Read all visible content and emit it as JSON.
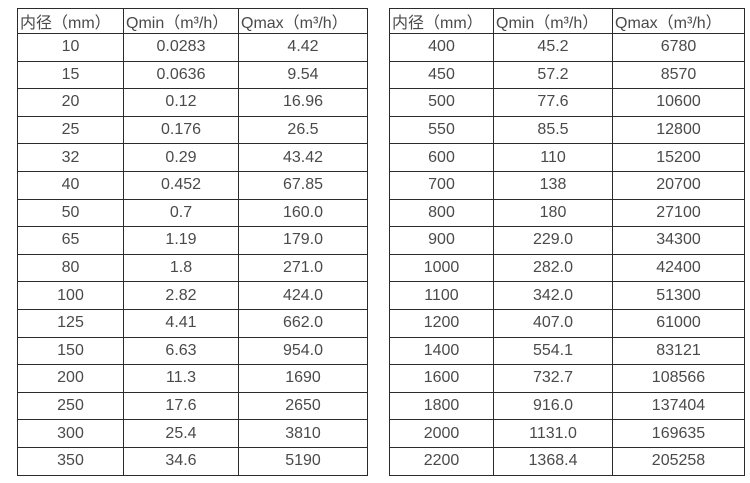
{
  "colors": {
    "text": "#4a4a4a",
    "border": "#2b2b2b",
    "background": "#ffffff"
  },
  "left_table": {
    "name": "flow-spec-table-small-diameters",
    "headers": [
      "内径（mm）",
      "Qmin（m³/h）",
      "Qmax（m³/h）"
    ],
    "rows": [
      [
        "10",
        "0.0283",
        "4.42"
      ],
      [
        "15",
        "0.0636",
        "9.54"
      ],
      [
        "20",
        "0.12",
        "16.96"
      ],
      [
        "25",
        "0.176",
        "26.5"
      ],
      [
        "32",
        "0.29",
        "43.42"
      ],
      [
        "40",
        "0.452",
        "67.85"
      ],
      [
        "50",
        "0.7",
        "160.0"
      ],
      [
        "65",
        "1.19",
        "179.0"
      ],
      [
        "80",
        "1.8",
        "271.0"
      ],
      [
        "100",
        "2.82",
        "424.0"
      ],
      [
        "125",
        "4.41",
        "662.0"
      ],
      [
        "150",
        "6.63",
        "954.0"
      ],
      [
        "200",
        "11.3",
        "1690"
      ],
      [
        "250",
        "17.6",
        "2650"
      ],
      [
        "300",
        "25.4",
        "3810"
      ],
      [
        "350",
        "34.6",
        "5190"
      ]
    ]
  },
  "right_table": {
    "name": "flow-spec-table-large-diameters",
    "headers": [
      "内径（mm）",
      "Qmin（m³/h）",
      "Qmax（m³/h）"
    ],
    "rows": [
      [
        "400",
        "45.2",
        "6780"
      ],
      [
        "450",
        "57.2",
        "8570"
      ],
      [
        "500",
        "77.6",
        "10600"
      ],
      [
        "550",
        "85.5",
        "12800"
      ],
      [
        "600",
        "110",
        "15200"
      ],
      [
        "700",
        "138",
        "20700"
      ],
      [
        "800",
        "180",
        "27100"
      ],
      [
        "900",
        "229.0",
        "34300"
      ],
      [
        "1000",
        "282.0",
        "42400"
      ],
      [
        "1100",
        "342.0",
        "51300"
      ],
      [
        "1200",
        "407.0",
        "61000"
      ],
      [
        "1400",
        "554.1",
        "83121"
      ],
      [
        "1600",
        "732.7",
        "108566"
      ],
      [
        "1800",
        "916.0",
        "137404"
      ],
      [
        "2000",
        "1131.0",
        "169635"
      ],
      [
        "2200",
        "1368.4",
        "205258"
      ]
    ]
  }
}
